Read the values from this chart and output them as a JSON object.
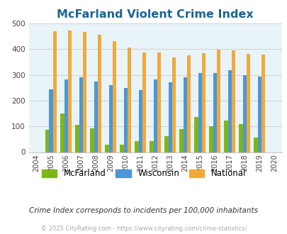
{
  "title": "McFarland Violent Crime Index",
  "years": [
    2004,
    2005,
    2006,
    2007,
    2008,
    2009,
    2010,
    2011,
    2012,
    2013,
    2014,
    2015,
    2016,
    2017,
    2018,
    2019,
    2020
  ],
  "mcfarland": [
    null,
    87,
    150,
    105,
    93,
    28,
    28,
    43,
    42,
    63,
    90,
    135,
    100,
    122,
    108,
    57,
    null
  ],
  "wisconsin": [
    null,
    245,
    283,
    291,
    275,
    260,
    250,
    240,
    281,
    271,
    291,
    306,
    306,
    317,
    298,
    293,
    null
  ],
  "national": [
    null,
    469,
    473,
    467,
    455,
    431,
    405,
    388,
    387,
    367,
    376,
    383,
    397,
    394,
    381,
    379,
    null
  ],
  "mcfarland_color": "#7db717",
  "wisconsin_color": "#4d96d9",
  "national_color": "#f0aa3a",
  "bg_color": "#e8f4f8",
  "title_color": "#1a6496",
  "ylim": [
    0,
    500
  ],
  "yticks": [
    0,
    100,
    200,
    300,
    400,
    500
  ],
  "subtitle": "Crime Index corresponds to incidents per 100,000 inhabitants",
  "footer": "© 2025 CityRating.com - https://www.cityrating.com/crime-statistics/",
  "bar_width": 0.25,
  "grid_color": "#cccccc",
  "legend_labels": [
    "McFarland",
    "Wisconsin",
    "National"
  ]
}
